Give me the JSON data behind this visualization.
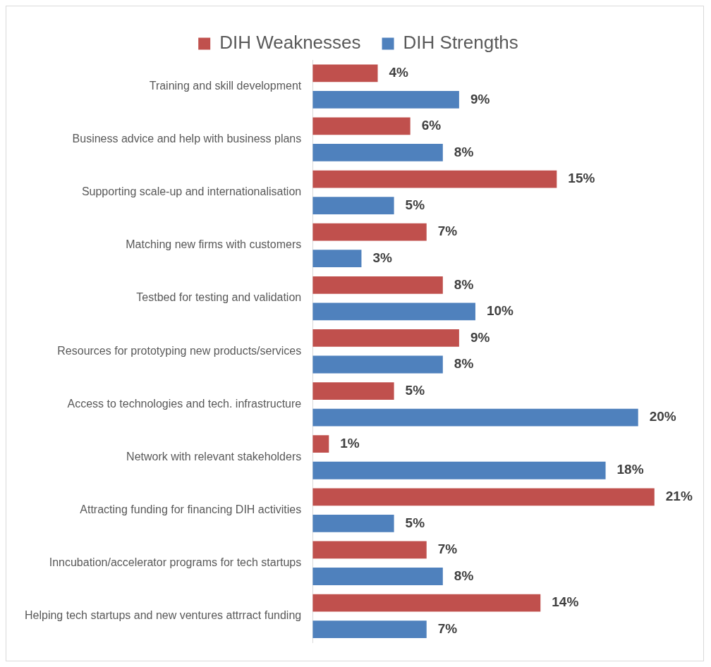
{
  "chart_data": {
    "type": "bar",
    "orientation": "horizontal",
    "legend": "top",
    "tick_labels": "y",
    "xlim": [
      0,
      24
    ],
    "categories": [
      "Training and skill development",
      "Business advice and help with business plans",
      "Supporting scale-up and internationalisation",
      "Matching new firms with customers",
      "Testbed for testing and validation",
      "Resources for prototyping new products/services",
      "Access to technologies and tech. infrastructure",
      "Network with relevant stakeholders",
      "Attracting funding for financing DIH activities",
      "Inncubation/accelerator programs for tech startups",
      "Helping tech startups and new ventures attrract funding"
    ],
    "series": [
      {
        "name": "DIH Weaknesses",
        "color": "#c0504d",
        "values": [
          4,
          6,
          15,
          7,
          8,
          9,
          5,
          1,
          21,
          7,
          14
        ],
        "value_labels": [
          "4%",
          "6%",
          "15%",
          "7%",
          "8%",
          "9%",
          "5%",
          "1%",
          "21%",
          "7%",
          "14%"
        ]
      },
      {
        "name": "DIH Strengths",
        "color": "#4f81bd",
        "values": [
          9,
          8,
          5,
          3,
          10,
          8,
          20,
          18,
          5,
          8,
          7
        ],
        "value_labels": [
          "9%",
          "8%",
          "5%",
          "3%",
          "10%",
          "8%",
          "20%",
          "18%",
          "5%",
          "8%",
          "7%"
        ]
      }
    ]
  }
}
